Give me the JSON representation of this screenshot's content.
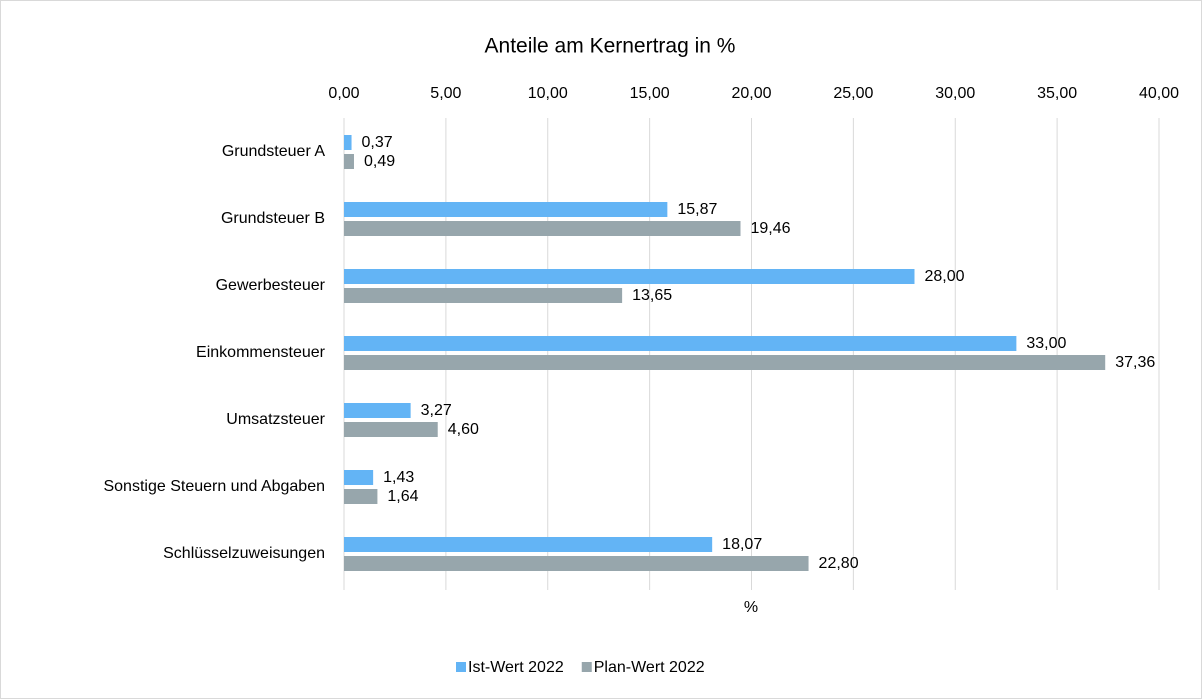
{
  "chart_data": {
    "type": "bar",
    "orientation": "horizontal",
    "title": "Anteile am Kernertrag in %",
    "x_label": "%",
    "categories": [
      "Grundsteuer A",
      "Grundsteuer B",
      "Gewerbesteuer",
      "Einkommensteuer",
      "Umsatzsteuer",
      "Sonstige Steuern und Abgaben",
      "Schlüsselzuweisungen"
    ],
    "series": [
      {
        "name": "Ist-Wert 2022",
        "color": "#63b4f5",
        "values": [
          0.37,
          15.87,
          28.0,
          33.0,
          3.27,
          1.43,
          18.07
        ],
        "value_labels": [
          "0,37",
          "15,87",
          "28,00",
          "33,00",
          "3,27",
          "1,43",
          "18,07"
        ]
      },
      {
        "name": "Plan-Wert 2022",
        "color": "#97a6ac",
        "values": [
          0.49,
          19.46,
          13.65,
          37.36,
          4.6,
          1.64,
          22.8
        ],
        "value_labels": [
          "0,49",
          "19,46",
          "13,65",
          "37,36",
          "4,60",
          "1,64",
          "22,80"
        ]
      }
    ],
    "xlim": [
      0,
      40
    ],
    "xticks": [
      {
        "value": 0,
        "label": "0,00"
      },
      {
        "value": 5,
        "label": "5,00"
      },
      {
        "value": 10,
        "label": "10,00"
      },
      {
        "value": 15,
        "label": "15,00"
      },
      {
        "value": 20,
        "label": "20,00"
      },
      {
        "value": 25,
        "label": "25,00"
      },
      {
        "value": 30,
        "label": "30,00"
      },
      {
        "value": 35,
        "label": "35,00"
      },
      {
        "value": 40,
        "label": "40,00"
      }
    ],
    "grid": true,
    "legend": "bottom"
  }
}
